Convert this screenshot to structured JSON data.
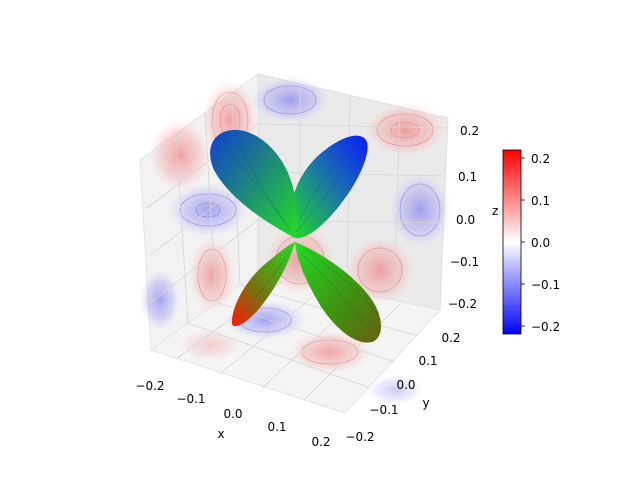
{
  "chart_data": {
    "type": "surface3d",
    "title": "",
    "xlabel": "x",
    "ylabel": "y",
    "zlabel": "z",
    "xlim": [
      -0.22,
      0.22
    ],
    "ylim": [
      -0.22,
      0.22
    ],
    "zlim": [
      -0.22,
      0.22
    ],
    "xticks": [
      "−0.2",
      "−0.1",
      "0.0",
      "0.1",
      "0.2"
    ],
    "yticks": [
      "−0.2",
      "−0.1",
      "0.0",
      "0.1",
      "0.2"
    ],
    "zticks": [
      "−0.2",
      "−0.1",
      "0.0",
      "0.1",
      "0.2"
    ],
    "surface": {
      "shape": "four-lobed orbital (d-orbital like), lobes along diagonals",
      "colors": {
        "top": "#0000ff",
        "middle": "#00ee00",
        "bottom": "#ff0000"
      }
    },
    "projections": {
      "planes": [
        "x-wall",
        "y-wall",
        "floor"
      ],
      "colormap": "bwr",
      "contour_lines": true
    },
    "colorbar": {
      "ticks": [
        "0.2",
        "0.1",
        "0.0",
        "−0.1",
        "−0.2"
      ],
      "vmin": -0.22,
      "vmax": 0.22,
      "colormap": "bwr"
    },
    "grid": true
  }
}
